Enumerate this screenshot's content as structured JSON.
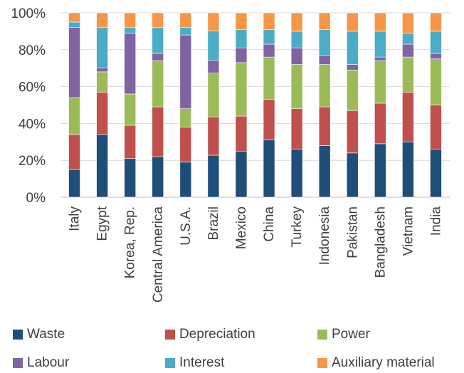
{
  "chart_data": {
    "type": "bar",
    "stacked": true,
    "normalized": true,
    "categories": [
      "Italy",
      "Egypt",
      "Korea, Rep.",
      "Central America",
      "U.S.A.",
      "Brazil",
      "Mexico",
      "China",
      "Turkey",
      "Indonesia",
      "Pakistan",
      "Bangladesh",
      "Vietnam",
      "India"
    ],
    "series": [
      {
        "name": "Waste",
        "color": "#1f4e79",
        "values": [
          15,
          34,
          21,
          22,
          19,
          23,
          25,
          31,
          26,
          28,
          24,
          29,
          30,
          26
        ]
      },
      {
        "name": "Depreciation",
        "color": "#c0504d",
        "values": [
          19,
          23,
          18,
          27,
          19,
          21,
          19,
          22,
          22,
          21,
          23,
          22,
          27,
          24
        ]
      },
      {
        "name": "Power",
        "color": "#9bbb59",
        "values": [
          20,
          11,
          17,
          25,
          10,
          24,
          29,
          23,
          24,
          23,
          22,
          23,
          19,
          25
        ]
      },
      {
        "name": "Labour",
        "color": "#8064a2",
        "values": [
          38,
          2,
          33,
          4,
          40,
          7,
          8,
          7,
          9,
          5,
          3,
          2,
          7,
          3
        ]
      },
      {
        "name": "Interest",
        "color": "#4bacc6",
        "values": [
          3,
          22,
          3,
          14,
          4,
          16,
          10,
          8,
          9,
          14,
          18,
          14,
          6,
          12
        ]
      },
      {
        "name": "Auxiliary material",
        "color": "#f79646",
        "values": [
          5,
          8,
          8,
          8,
          8,
          10,
          9,
          9,
          10,
          9,
          10,
          10,
          11,
          10
        ]
      }
    ],
    "ylim": [
      0,
      100
    ],
    "yticks": [
      "0%",
      "20%",
      "40%",
      "60%",
      "80%",
      "100%"
    ],
    "title": "",
    "xlabel": "",
    "ylabel": "",
    "grid": true,
    "legend_position": "bottom"
  }
}
